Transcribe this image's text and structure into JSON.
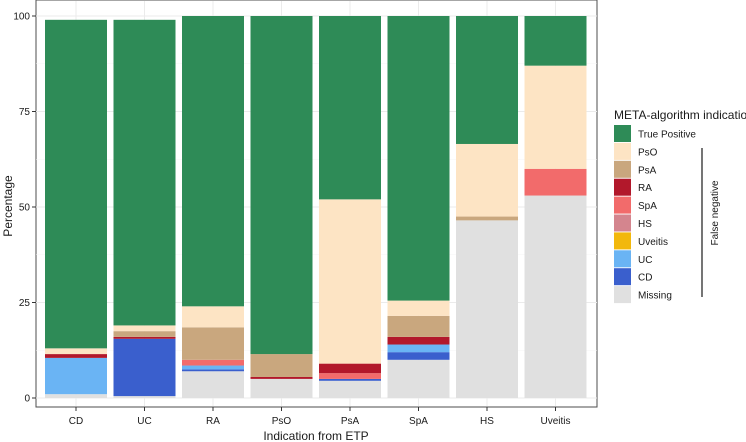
{
  "chart_data": {
    "type": "bar",
    "stacked": true,
    "xlabel": "Indication from ETP",
    "ylabel": "Percentage",
    "ylim": [
      0,
      100
    ],
    "yticks": [
      0,
      25,
      50,
      75,
      100
    ],
    "grid": true,
    "categories": [
      "CD",
      "UC",
      "RA",
      "PsO",
      "PsA",
      "SpA",
      "HS",
      "Uveitis"
    ],
    "legend": {
      "title": "META-algorithm indication",
      "position": "right",
      "bracket_label": "False negative"
    },
    "series": [
      {
        "name": "Missing",
        "color": "#e0e0e0",
        "values": [
          1.0,
          0.5,
          7.0,
          5.0,
          4.5,
          10.0,
          46.5,
          53.0
        ]
      },
      {
        "name": "CD",
        "color": "#3a5fcd",
        "values": [
          0.0,
          15.0,
          0.5,
          0.0,
          0.5,
          2.0,
          0.0,
          0.0
        ]
      },
      {
        "name": "UC",
        "color": "#6ab4f4",
        "values": [
          9.5,
          0.0,
          1.0,
          0.0,
          0.0,
          2.0,
          0.0,
          0.0
        ]
      },
      {
        "name": "Uveitis",
        "color": "#f2b80c",
        "values": [
          0,
          0,
          0,
          0,
          0,
          0,
          0,
          0
        ]
      },
      {
        "name": "HS",
        "color": "#d4858e",
        "values": [
          0,
          0,
          0,
          0,
          0,
          0,
          0,
          0
        ]
      },
      {
        "name": "SpA",
        "color": "#f26b6b",
        "values": [
          0.0,
          0.0,
          1.5,
          0.0,
          1.5,
          0.0,
          0.0,
          7.0
        ]
      },
      {
        "name": "RA",
        "color": "#b2182b",
        "values": [
          1.0,
          0.5,
          0.0,
          0.5,
          2.5,
          2.0,
          0.0,
          0.0
        ]
      },
      {
        "name": "PsA",
        "color": "#c9a77e",
        "values": [
          0.0,
          1.5,
          8.5,
          6.0,
          0.0,
          5.5,
          1.0,
          0.0
        ]
      },
      {
        "name": "PsO",
        "color": "#fde4c4",
        "values": [
          1.5,
          1.5,
          5.5,
          0.0,
          43.0,
          4.0,
          19.0,
          27.0
        ]
      },
      {
        "name": "True Positive",
        "color": "#2e8b57",
        "values": [
          86.0,
          80.0,
          76.0,
          88.5,
          48.0,
          74.5,
          33.5,
          13.0
        ]
      }
    ],
    "legend_order": [
      "True Positive",
      "PsO",
      "PsA",
      "RA",
      "SpA",
      "HS",
      "Uveitis",
      "UC",
      "CD",
      "Missing"
    ]
  }
}
